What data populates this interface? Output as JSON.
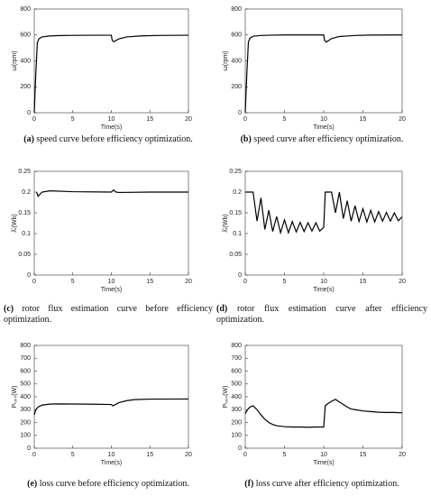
{
  "chart_data": [
    {
      "type": "line",
      "x_label": "Time(s)",
      "y_label": "ω(rpm)",
      "caption_label": "(a)",
      "caption": "speed curve before efficiency optimization.",
      "x": [
        0,
        0.2,
        0.4,
        0.6,
        1,
        2,
        3,
        5,
        8,
        10,
        10.1,
        10.3,
        11,
        12,
        14,
        16,
        20
      ],
      "values": [
        0,
        300,
        540,
        570,
        585,
        592,
        595,
        597,
        598,
        598,
        560,
        548,
        570,
        585,
        593,
        596,
        598
      ],
      "color": "#000000",
      "xlim": [
        0,
        20
      ],
      "xticks": [
        0,
        5,
        10,
        15,
        20
      ],
      "ylim": [
        0,
        800
      ],
      "yticks": [
        0,
        200,
        400,
        600,
        800
      ]
    },
    {
      "type": "line",
      "x_label": "Time(s)",
      "y_label": "ω(rpm)",
      "caption_label": "(b)",
      "caption": "speed curve after efficiency optimization.",
      "x": [
        0,
        0.2,
        0.4,
        0.6,
        1,
        2,
        3,
        5,
        8,
        10,
        10.1,
        10.3,
        11,
        12,
        14,
        16,
        20
      ],
      "values": [
        0,
        300,
        545,
        575,
        590,
        596,
        598,
        600,
        600,
        600,
        560,
        545,
        572,
        588,
        596,
        599,
        600
      ],
      "color": "#000000",
      "xlim": [
        0,
        20
      ],
      "xticks": [
        0,
        5,
        10,
        15,
        20
      ],
      "ylim": [
        0,
        800
      ],
      "yticks": [
        0,
        200,
        400,
        600,
        800
      ]
    },
    {
      "type": "line",
      "x_label": "Time(s)",
      "y_label": "λ̂ᵣ(Wb)",
      "caption_label": "(c)",
      "caption": "rotor flux estimation curve before efficiency optimization.",
      "x": [
        0.3,
        0.5,
        1,
        2,
        5,
        10,
        10.3,
        10.6,
        11,
        15,
        20
      ],
      "values": [
        0.2,
        0.19,
        0.2,
        0.203,
        0.201,
        0.2,
        0.205,
        0.2,
        0.199,
        0.2,
        0.2
      ],
      "color": "#000000",
      "xlim": [
        0,
        20
      ],
      "xticks": [
        0,
        5,
        10,
        15,
        20
      ],
      "ylim": [
        0,
        0.25
      ],
      "yticks": [
        0,
        0.05,
        0.1,
        0.15,
        0.2,
        0.25
      ]
    },
    {
      "type": "line",
      "x_label": "Time(s)",
      "y_label": "λ̂ᵣ(Wb)",
      "caption_label": "(d)",
      "caption": "rotor flux estimation curve after efficiency optimization.",
      "x": [
        0,
        1,
        1.5,
        2,
        2.5,
        3,
        3.5,
        4,
        4.5,
        5,
        5.5,
        6,
        6.5,
        7,
        7.5,
        8,
        8.5,
        9,
        9.5,
        10,
        10.2,
        11,
        11.5,
        12,
        12.5,
        13,
        13.5,
        14,
        14.5,
        15,
        15.5,
        16,
        16.5,
        17,
        17.5,
        18,
        18.5,
        19,
        19.5,
        20
      ],
      "values": [
        0.2,
        0.2,
        0.13,
        0.186,
        0.11,
        0.156,
        0.105,
        0.141,
        0.102,
        0.133,
        0.102,
        0.129,
        0.104,
        0.127,
        0.105,
        0.126,
        0.106,
        0.126,
        0.106,
        0.115,
        0.2,
        0.2,
        0.15,
        0.2,
        0.136,
        0.179,
        0.13,
        0.167,
        0.129,
        0.16,
        0.128,
        0.156,
        0.128,
        0.153,
        0.13,
        0.151,
        0.13,
        0.15,
        0.131,
        0.14
      ],
      "color": "#000000",
      "xlim": [
        0,
        20
      ],
      "xticks": [
        0,
        5,
        10,
        15,
        20
      ],
      "ylim": [
        0,
        0.25
      ],
      "yticks": [
        0,
        0.05,
        0.1,
        0.15,
        0.2,
        0.25
      ]
    },
    {
      "type": "line",
      "x_label": "Time(s)",
      "y_label": "Pₗₒₛₛ(W)",
      "caption_label": "(e)",
      "caption": "loss curve before efficiency optimization.",
      "x": [
        0,
        0.2,
        0.5,
        1,
        2,
        3,
        5,
        8,
        10,
        10.2,
        11,
        12,
        13,
        15,
        20
      ],
      "values": [
        260,
        300,
        320,
        335,
        343,
        345,
        344,
        342,
        340,
        330,
        355,
        370,
        378,
        382,
        383
      ],
      "color": "#000000",
      "xlim": [
        0,
        20
      ],
      "xticks": [
        0,
        5,
        10,
        15,
        20
      ],
      "ylim": [
        0,
        800
      ],
      "yticks": [
        0,
        100,
        200,
        300,
        400,
        500,
        600,
        700,
        800
      ]
    },
    {
      "type": "line",
      "x_label": "Time(s)",
      "y_label": "Pₗₒₛₛ(W)",
      "caption_label": "(f)",
      "caption": "loss curve after efficiency optimization.",
      "x": [
        0,
        0.3,
        0.6,
        1,
        1.5,
        2,
        2.5,
        3,
        3.5,
        4,
        5,
        6,
        7,
        8,
        9,
        10,
        10.2,
        10.6,
        11,
        11.5,
        12,
        12.5,
        13,
        13.5,
        14,
        15,
        16,
        17,
        18,
        19,
        20
      ],
      "values": [
        270,
        300,
        320,
        330,
        300,
        260,
        225,
        200,
        185,
        175,
        168,
        165,
        165,
        163,
        165,
        165,
        330,
        350,
        365,
        380,
        360,
        340,
        320,
        305,
        300,
        290,
        285,
        280,
        278,
        278,
        275
      ],
      "color": "#000000",
      "xlim": [
        0,
        20
      ],
      "xticks": [
        0,
        5,
        10,
        15,
        20
      ],
      "ylim": [
        0,
        800
      ],
      "yticks": [
        0,
        100,
        200,
        300,
        400,
        500,
        600,
        700,
        800
      ]
    }
  ]
}
